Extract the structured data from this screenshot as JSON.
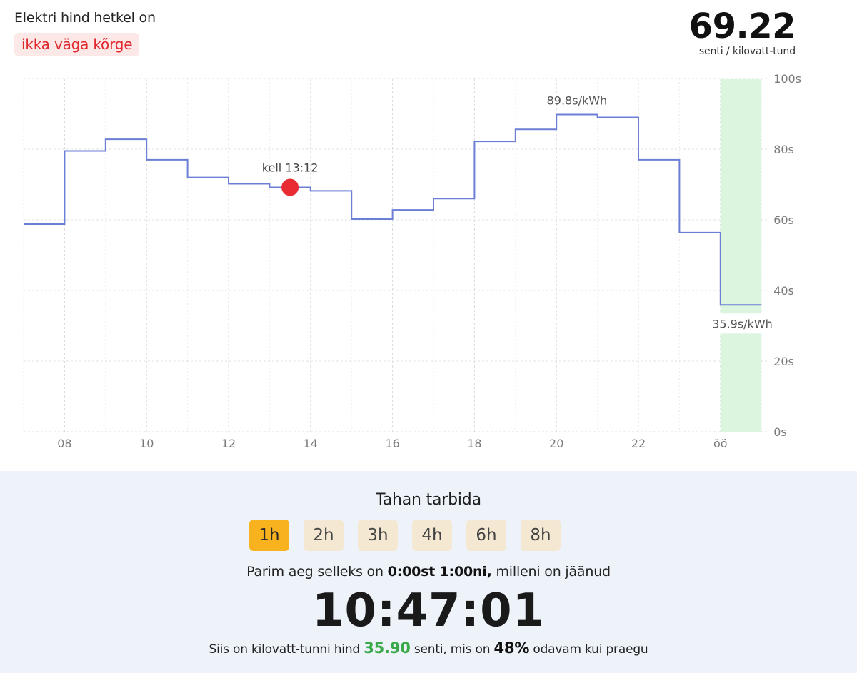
{
  "header": {
    "intro": "Elektri hind hetkel on",
    "status": "ikka väga kõrge",
    "price": "69.22",
    "unit": "senti / kilovatt-tund"
  },
  "colors": {
    "line": "#6b7fd6",
    "marker": "#e92b33",
    "highlight": "#dcf5df",
    "status_text": "#e0282d",
    "status_bg": "#fde8e8",
    "active_button": "#f7b21d",
    "button": "#f5e8d2",
    "green_value": "#3aa94a",
    "panel_bg": "#eef3fa"
  },
  "chart_data": {
    "type": "line",
    "step": true,
    "x_ticks": [
      "08",
      "10",
      "12",
      "14",
      "16",
      "18",
      "20",
      "22",
      "öö"
    ],
    "y_ticks": [
      "0s",
      "20s",
      "40s",
      "60s",
      "80s",
      "100s"
    ],
    "ylim": [
      0,
      100
    ],
    "grid": true,
    "series": [
      {
        "hours": [
          7,
          8,
          9,
          10,
          11,
          12,
          13,
          14,
          15,
          16,
          17,
          18,
          19,
          20,
          21,
          22,
          23,
          24
        ],
        "values": [
          58.8,
          79.5,
          82.8,
          77.0,
          72.0,
          70.2,
          69.2,
          68.2,
          60.2,
          62.8,
          66.0,
          82.2,
          85.6,
          89.8,
          89.0,
          77.0,
          56.4,
          35.9
        ]
      }
    ],
    "current_marker": {
      "hour": 13.5,
      "value": 69.2,
      "label": "kell 13:12"
    },
    "max_label": "89.8s/kWh",
    "min_label": "35.9s/kWh",
    "highlight_hour": 24
  },
  "panel": {
    "title": "Tahan tarbida",
    "durations": [
      "1h",
      "2h",
      "3h",
      "4h",
      "6h",
      "8h"
    ],
    "best_prefix": "Parim aeg selleks on",
    "best_range": "0:00st 1:00ni,",
    "best_suffix": "milleni on jäänud",
    "countdown": "10:47:01",
    "savings_prefix": "Siis on kilovatt-tunni hind",
    "savings_price": "35.90",
    "savings_middle": "senti, mis on",
    "savings_percent": "48%",
    "savings_suffix": "odavam kui praegu"
  }
}
